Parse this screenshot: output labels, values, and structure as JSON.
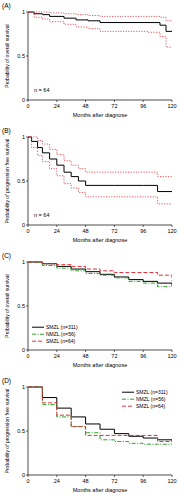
{
  "chart_data": [
    {
      "type": "step",
      "title": "(A)",
      "x_label": "Months after diagnose",
      "y_label": "Probability of overall survival",
      "annotation": "n = 64",
      "x": [
        0,
        5,
        12,
        18,
        30,
        40,
        50,
        60,
        100,
        110,
        115,
        120
      ],
      "series": [
        {
          "color": "#000000",
          "line_style": "solid",
          "values": [
            1,
            0.98,
            0.97,
            0.95,
            0.93,
            0.91,
            0.9,
            0.88,
            0.88,
            0.85,
            0.78,
            0.78
          ]
        },
        {
          "color": "#e0303a",
          "line_style": "dotted",
          "values": [
            1,
            1,
            1,
            0.99,
            0.98,
            0.97,
            0.96,
            0.95,
            0.95,
            0.94,
            0.9,
            0.9
          ]
        },
        {
          "color": "#e0303a",
          "line_style": "dotted",
          "values": [
            1,
            0.94,
            0.92,
            0.89,
            0.86,
            0.83,
            0.81,
            0.78,
            0.77,
            0.72,
            0.6,
            0.6
          ]
        }
      ],
      "xlim": [
        0,
        120
      ],
      "xticks": [
        0,
        24,
        48,
        72,
        96,
        120
      ],
      "ylim": [
        0,
        1
      ],
      "yticks": [
        0,
        0.5,
        1
      ]
    },
    {
      "type": "step",
      "title": "(B)",
      "x_label": "Months after diagnose",
      "y_label": "Probability of progression free survival",
      "annotation": "n = 64",
      "x": [
        0,
        3,
        8,
        12,
        18,
        24,
        30,
        36,
        42,
        48,
        60,
        72,
        96,
        108,
        120
      ],
      "series": [
        {
          "color": "#000000",
          "line_style": "solid",
          "values": [
            1,
            0.95,
            0.88,
            0.82,
            0.75,
            0.68,
            0.6,
            0.55,
            0.5,
            0.45,
            0.45,
            0.45,
            0.45,
            0.38,
            0.38
          ]
        },
        {
          "color": "#e0303a",
          "line_style": "dotted",
          "values": [
            1,
            1,
            0.96,
            0.92,
            0.86,
            0.8,
            0.73,
            0.68,
            0.64,
            0.6,
            0.6,
            0.6,
            0.6,
            0.55,
            0.55
          ]
        },
        {
          "color": "#e0303a",
          "line_style": "dotted",
          "values": [
            1,
            0.88,
            0.79,
            0.72,
            0.64,
            0.56,
            0.47,
            0.42,
            0.37,
            0.32,
            0.32,
            0.32,
            0.32,
            0.24,
            0.24
          ]
        }
      ],
      "xlim": [
        0,
        120
      ],
      "xticks": [
        0,
        24,
        48,
        72,
        96,
        120
      ],
      "ylim": [
        0,
        1
      ],
      "yticks": [
        0,
        0.5,
        1
      ]
    },
    {
      "type": "step",
      "title": "(C)",
      "x_label": "Months after diagnose",
      "y_label": "Probability of overall survival",
      "legend": "lower left",
      "x": [
        0,
        12,
        24,
        36,
        48,
        60,
        72,
        84,
        96,
        108,
        120
      ],
      "series": [
        {
          "name": "SMZL (n=311)",
          "color": "#000000",
          "line_style": "solid",
          "values": [
            1,
            0.98,
            0.95,
            0.92,
            0.89,
            0.86,
            0.83,
            0.8,
            0.78,
            0.76,
            0.73
          ]
        },
        {
          "name": "NMZL (n=56)",
          "color": "#2ca02c",
          "line_style": "dashdot",
          "values": [
            1,
            0.96,
            0.93,
            0.9,
            0.87,
            0.85,
            0.82,
            0.78,
            0.76,
            0.72,
            0.72
          ]
        },
        {
          "name": "SMZL (n=64)",
          "color": "#e0303a",
          "line_style": "dashed",
          "values": [
            1,
            0.98,
            0.97,
            0.95,
            0.92,
            0.9,
            0.88,
            0.88,
            0.88,
            0.85,
            0.78
          ]
        }
      ],
      "xlim": [
        0,
        120
      ],
      "xticks": [
        0,
        24,
        48,
        72,
        96,
        120
      ],
      "ylim": [
        0,
        1
      ],
      "yticks": [
        0,
        0.5,
        1
      ]
    },
    {
      "type": "step",
      "title": "(D)",
      "x_label": "Months after diagnose",
      "y_label": "Probability of progression free survival",
      "legend": "upper right",
      "x": [
        0,
        12,
        24,
        36,
        48,
        60,
        72,
        84,
        96,
        108,
        120
      ],
      "series": [
        {
          "name": "SMZL (n=311)",
          "color": "#000000",
          "line_style": "solid",
          "values": [
            1,
            0.88,
            0.76,
            0.66,
            0.58,
            0.52,
            0.47,
            0.44,
            0.42,
            0.4,
            0.38
          ]
        },
        {
          "name": "NMZL (n=56)",
          "color": "#2ca02c",
          "line_style": "dashdot",
          "values": [
            1,
            0.8,
            0.66,
            0.55,
            0.48,
            0.4,
            0.38,
            0.36,
            0.35,
            0.35,
            0.35
          ]
        },
        {
          "name": "SMZL (n=64)",
          "color": "#e0303a",
          "line_style": "dashed",
          "values": [
            1,
            0.82,
            0.68,
            0.55,
            0.45,
            0.45,
            0.45,
            0.45,
            0.45,
            0.38,
            0.38
          ]
        }
      ],
      "xlim": [
        0,
        120
      ],
      "xticks": [
        0,
        24,
        48,
        72,
        96,
        120
      ],
      "ylim": [
        0,
        1
      ],
      "yticks": [
        0,
        0.5,
        1
      ]
    }
  ]
}
